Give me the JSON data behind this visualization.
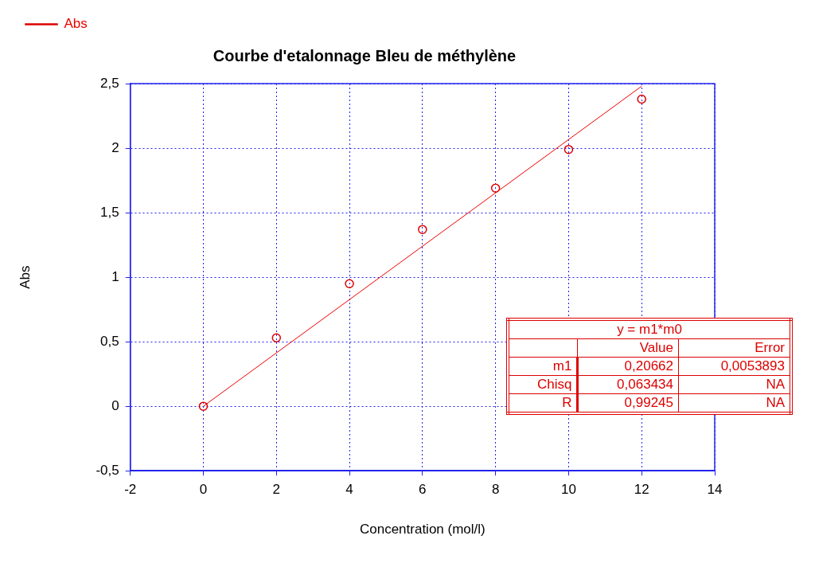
{
  "chart_data": {
    "type": "scatter",
    "title": "Courbe d'etalonnage Bleu de méthylène",
    "xlabel": "Concentration (mol/l)",
    "ylabel": "Abs",
    "x": [
      0,
      2,
      4,
      6,
      8,
      10,
      12
    ],
    "series": [
      {
        "name": "Abs",
        "color": "#dd0000",
        "marker": "circle",
        "values": [
          0,
          0.53,
          0.95,
          1.37,
          1.69,
          1.99,
          2.38
        ]
      },
      {
        "type": "line",
        "color": "#ee0000",
        "marker": "none",
        "x": [
          0,
          12
        ],
        "values": [
          0,
          2.48
        ]
      }
    ],
    "xlim": [
      -2,
      14
    ],
    "xticks": [
      -2,
      0,
      2,
      4,
      6,
      8,
      10,
      12,
      14
    ],
    "ylim": [
      -0.5,
      2.5
    ],
    "yticks": [
      {
        "value": -0.5,
        "label": "-0,5"
      },
      0,
      {
        "value": 0.5,
        "label": "0,5"
      },
      1,
      {
        "value": 1.5,
        "label": "1,5"
      },
      2,
      {
        "value": 2.5,
        "label": "2,5"
      }
    ],
    "grid": true,
    "legend": "top left",
    "annotations": [
      "y = m1*m0",
      "Value",
      "Error",
      "m1",
      "0,20662",
      "0,0053893",
      "Chisq",
      "0,063434",
      "NA",
      "R",
      "0,99245",
      "NA"
    ]
  }
}
